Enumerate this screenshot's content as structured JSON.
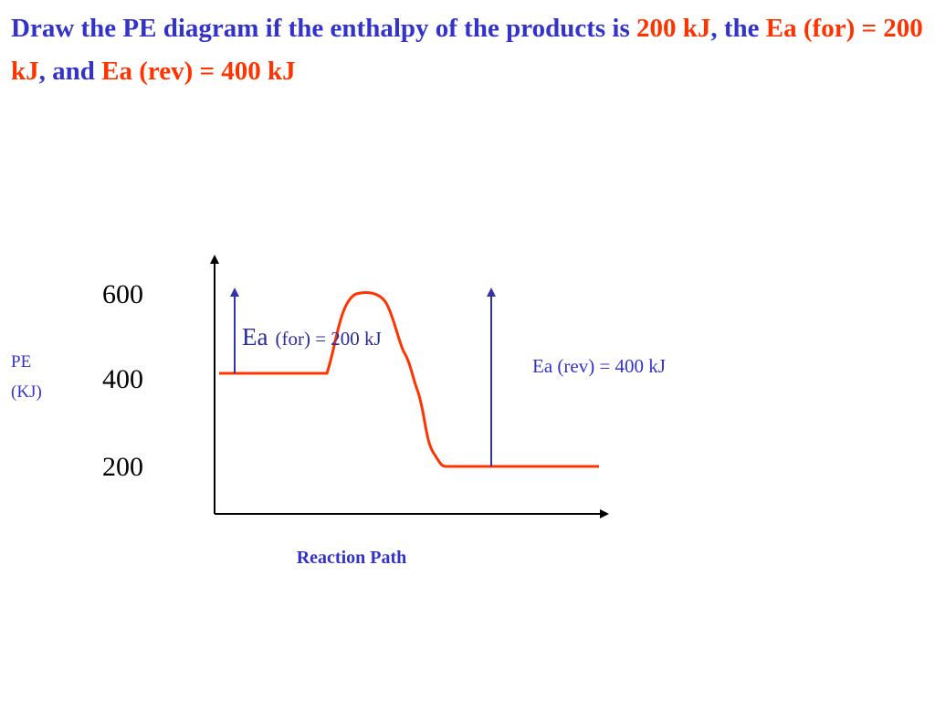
{
  "header": {
    "title_segments": [
      {
        "text": "Draw the PE diagram if the enthalpy of the products is ",
        "color": "#3333cc"
      },
      {
        "text": "200 kJ",
        "color": "#ff3300"
      },
      {
        "text": ", the ",
        "color": "#3333cc"
      },
      {
        "text": "Ea (for) = 200 kJ",
        "color": "#ff3300"
      },
      {
        "text": ", and ",
        "color": "#3333cc"
      },
      {
        "text": "Ea (rev) = 400 kJ",
        "color": "#ff3300"
      }
    ]
  },
  "diagram": {
    "y_labels": [
      "600",
      "400",
      "200"
    ],
    "y_axis_label": [
      "PE",
      "(KJ)"
    ],
    "x_axis_label": "Reaction Path",
    "ea_forward_label": {
      "symbol": "Ea",
      "text": "(for) = 200 kJ"
    },
    "ea_reverse_label": "Ea (rev) = 400 kJ"
  }
}
